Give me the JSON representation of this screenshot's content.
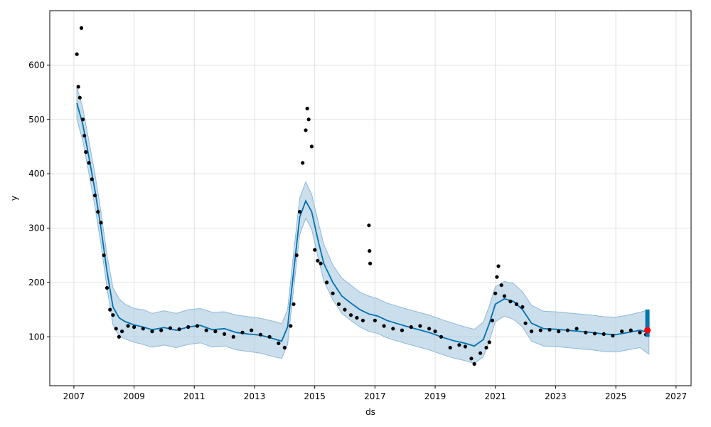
{
  "chart_data": {
    "type": "line",
    "title": "",
    "xlabel": "ds",
    "ylabel": "y",
    "xlim": [
      2006.2,
      2027.5
    ],
    "ylim": [
      10,
      700
    ],
    "grid": true,
    "x_ticks": [
      "2007",
      "2009",
      "2011",
      "2013",
      "2015",
      "2017",
      "2019",
      "2021",
      "2023",
      "2025",
      "2027"
    ],
    "y_ticks": [
      "100",
      "200",
      "300",
      "400",
      "500",
      "600"
    ],
    "colors": {
      "forecast_line": "#0072b2",
      "uncertainty_band": "#a6c8e0",
      "observed_points": "#000000",
      "highlight_point": "#ff0000"
    },
    "series": [
      {
        "role": "forecast",
        "x": [
          2007.1,
          2007.3,
          2007.5,
          2007.7,
          2007.9,
          2008.1,
          2008.3,
          2008.5,
          2008.7,
          2009.0,
          2009.3,
          2009.6,
          2010.0,
          2010.4,
          2010.8,
          2011.2,
          2011.6,
          2012.0,
          2012.4,
          2012.8,
          2013.2,
          2013.6,
          2013.9,
          2014.1,
          2014.3,
          2014.5,
          2014.7,
          2014.9,
          2015.1,
          2015.3,
          2015.6,
          2015.9,
          2016.2,
          2016.5,
          2016.8,
          2017.1,
          2017.4,
          2017.7,
          2018.0,
          2018.4,
          2018.8,
          2019.2,
          2019.6,
          2020.0,
          2020.3,
          2020.6,
          2020.8,
          2021.0,
          2021.3,
          2021.6,
          2021.9,
          2022.2,
          2022.6,
          2023.0,
          2023.4,
          2023.8,
          2024.2,
          2024.6,
          2025.0,
          2025.4,
          2025.8,
          2026.1
        ],
        "y": [
          530,
          490,
          430,
          370,
          300,
          220,
          155,
          135,
          128,
          122,
          118,
          113,
          117,
          112,
          118,
          121,
          113,
          115,
          108,
          105,
          103,
          97,
          92,
          118,
          220,
          320,
          350,
          330,
          280,
          235,
          200,
          175,
          162,
          150,
          142,
          138,
          130,
          125,
          120,
          114,
          108,
          100,
          93,
          88,
          83,
          95,
          125,
          160,
          170,
          165,
          150,
          125,
          115,
          114,
          112,
          110,
          108,
          105,
          104,
          108,
          112,
          108
        ]
      },
      {
        "role": "upper_bound",
        "x": [
          2007.1,
          2007.3,
          2007.5,
          2007.7,
          2007.9,
          2008.1,
          2008.3,
          2008.5,
          2008.7,
          2009.0,
          2009.3,
          2009.6,
          2010.0,
          2010.4,
          2010.8,
          2011.2,
          2011.6,
          2012.0,
          2012.4,
          2012.8,
          2013.2,
          2013.6,
          2013.9,
          2014.1,
          2014.3,
          2014.5,
          2014.7,
          2014.9,
          2015.1,
          2015.3,
          2015.6,
          2015.9,
          2016.2,
          2016.5,
          2016.8,
          2017.1,
          2017.4,
          2017.7,
          2018.0,
          2018.4,
          2018.8,
          2019.2,
          2019.6,
          2020.0,
          2020.3,
          2020.6,
          2020.8,
          2021.0,
          2021.3,
          2021.6,
          2021.9,
          2022.2,
          2022.6,
          2023.0,
          2023.4,
          2023.8,
          2024.2,
          2024.6,
          2025.0,
          2025.4,
          2025.8,
          2026.1
        ],
        "y": [
          560,
          520,
          460,
          400,
          330,
          250,
          190,
          170,
          160,
          152,
          150,
          143,
          148,
          143,
          150,
          152,
          145,
          146,
          140,
          137,
          134,
          129,
          124,
          150,
          255,
          355,
          385,
          362,
          315,
          270,
          232,
          208,
          195,
          182,
          175,
          170,
          162,
          157,
          152,
          146,
          140,
          132,
          125,
          118,
          114,
          127,
          157,
          192,
          202,
          198,
          183,
          158,
          147,
          146,
          144,
          142,
          140,
          137,
          136,
          140,
          145,
          150
        ]
      },
      {
        "role": "lower_bound",
        "x": [
          2007.1,
          2007.3,
          2007.5,
          2007.7,
          2007.9,
          2008.1,
          2008.3,
          2008.5,
          2008.7,
          2009.0,
          2009.3,
          2009.6,
          2010.0,
          2010.4,
          2010.8,
          2011.2,
          2011.6,
          2012.0,
          2012.4,
          2012.8,
          2013.2,
          2013.6,
          2013.9,
          2014.1,
          2014.3,
          2014.5,
          2014.7,
          2014.9,
          2015.1,
          2015.3,
          2015.6,
          2015.9,
          2016.2,
          2016.5,
          2016.8,
          2017.1,
          2017.4,
          2017.7,
          2018.0,
          2018.4,
          2018.8,
          2019.2,
          2019.6,
          2020.0,
          2020.3,
          2020.6,
          2020.8,
          2021.0,
          2021.3,
          2021.6,
          2021.9,
          2022.2,
          2022.6,
          2023.0,
          2023.4,
          2023.8,
          2024.2,
          2024.6,
          2025.0,
          2025.4,
          2025.8,
          2026.1
        ],
        "y": [
          500,
          460,
          400,
          340,
          270,
          190,
          122,
          102,
          96,
          90,
          86,
          81,
          85,
          80,
          86,
          89,
          81,
          83,
          76,
          73,
          70,
          64,
          60,
          86,
          188,
          288,
          318,
          298,
          248,
          203,
          168,
          143,
          130,
          118,
          110,
          106,
          98,
          93,
          88,
          82,
          76,
          68,
          61,
          56,
          51,
          63,
          93,
          128,
          138,
          132,
          118,
          92,
          83,
          82,
          80,
          78,
          76,
          73,
          72,
          76,
          80,
          68
        ]
      },
      {
        "role": "observed",
        "x": [
          2007.1,
          2007.15,
          2007.2,
          2007.25,
          2007.3,
          2007.35,
          2007.4,
          2007.5,
          2007.6,
          2007.7,
          2007.8,
          2007.9,
          2008.0,
          2008.1,
          2008.2,
          2008.3,
          2008.4,
          2008.5,
          2008.6,
          2008.8,
          2009.0,
          2009.3,
          2009.6,
          2009.9,
          2010.2,
          2010.5,
          2010.8,
          2011.1,
          2011.4,
          2011.7,
          2012.0,
          2012.3,
          2012.6,
          2012.9,
          2013.2,
          2013.5,
          2013.8,
          2014.0,
          2014.2,
          2014.3,
          2014.4,
          2014.5,
          2014.6,
          2014.7,
          2014.75,
          2014.8,
          2014.9,
          2015.0,
          2015.1,
          2015.2,
          2015.4,
          2015.6,
          2015.8,
          2016.0,
          2016.2,
          2016.4,
          2016.6,
          2016.8,
          2016.82,
          2016.84,
          2017.0,
          2017.3,
          2017.6,
          2017.9,
          2018.2,
          2018.5,
          2018.8,
          2019.0,
          2019.2,
          2019.5,
          2019.8,
          2020.0,
          2020.2,
          2020.3,
          2020.5,
          2020.7,
          2020.8,
          2020.9,
          2021.0,
          2021.05,
          2021.1,
          2021.2,
          2021.3,
          2021.5,
          2021.7,
          2021.9,
          2022.0,
          2022.2,
          2022.5,
          2022.8,
          2023.1,
          2023.4,
          2023.7,
          2024.0,
          2024.3,
          2024.6,
          2024.9,
          2025.2,
          2025.5,
          2025.8,
          2026.0
        ],
        "y": [
          620,
          560,
          540,
          668,
          500,
          470,
          440,
          420,
          390,
          360,
          330,
          310,
          250,
          190,
          150,
          140,
          115,
          100,
          110,
          120,
          118,
          115,
          110,
          112,
          116,
          114,
          118,
          120,
          112,
          110,
          105,
          100,
          108,
          112,
          104,
          100,
          88,
          80,
          120,
          160,
          250,
          330,
          420,
          480,
          520,
          500,
          450,
          260,
          240,
          235,
          200,
          180,
          160,
          150,
          140,
          135,
          130,
          305,
          258,
          235,
          130,
          120,
          115,
          112,
          118,
          120,
          115,
          110,
          100,
          80,
          85,
          82,
          60,
          50,
          70,
          80,
          90,
          130,
          180,
          210,
          230,
          195,
          175,
          165,
          160,
          155,
          125,
          110,
          112,
          113,
          110,
          112,
          115,
          108,
          106,
          105,
          102,
          110,
          112,
          108,
          104
        ]
      },
      {
        "role": "highlight",
        "x": [
          2026.05
        ],
        "y": [
          112
        ]
      }
    ]
  }
}
